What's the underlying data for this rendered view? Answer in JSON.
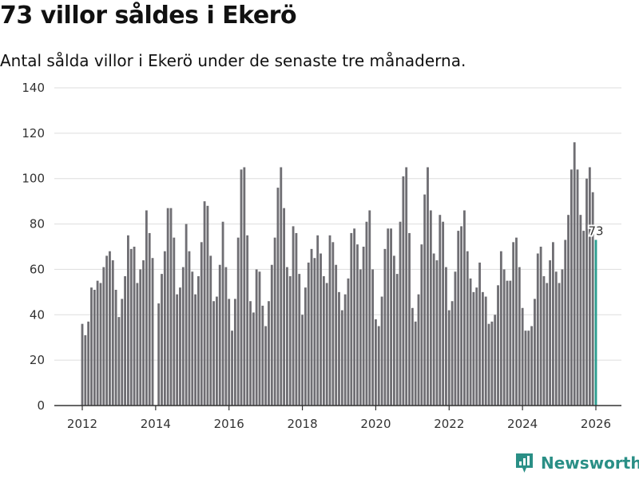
{
  "header": {
    "title": "73 villor såldes i Ekerö",
    "subtitle": "Antal sålda villor i Ekerö under de senaste tre månaderna."
  },
  "brand": {
    "name": "Newsworthy",
    "icon": "newsworthy-logo-icon"
  },
  "colors": {
    "bar": "#6f6e73",
    "highlight": "#2a9d8f",
    "grid": "#dddddd",
    "axis": "#333333",
    "brand": "#2a8f86"
  },
  "chart_data": {
    "type": "bar",
    "title": "73 villor såldes i Ekerö",
    "xlabel": "",
    "ylabel": "",
    "ylim": [
      0,
      140
    ],
    "yticks": [
      0,
      20,
      40,
      60,
      80,
      100,
      120,
      140
    ],
    "xticks": [
      2012,
      2014,
      2016,
      2018,
      2020,
      2022,
      2024,
      2026
    ],
    "x_start": 2012.0,
    "x_step_years": 0.0833,
    "series": [
      {
        "name": "Antal sålda villor (rullande tre månader)",
        "values": [
          36,
          31,
          37,
          52,
          51,
          55,
          54,
          61,
          66,
          68,
          64,
          51,
          39,
          47,
          57,
          75,
          69,
          70,
          54,
          60,
          64,
          86,
          76,
          65,
          0,
          45,
          58,
          68,
          87,
          87,
          74,
          49,
          52,
          61,
          80,
          68,
          59,
          49,
          57,
          72,
          90,
          88,
          66,
          46,
          48,
          62,
          81,
          61,
          47,
          33,
          47,
          74,
          104,
          105,
          75,
          46,
          41,
          60,
          59,
          44,
          35,
          46,
          62,
          74,
          96,
          105,
          87,
          61,
          57,
          79,
          76,
          58,
          40,
          52,
          63,
          69,
          65,
          75,
          67,
          57,
          54,
          75,
          72,
          62,
          50,
          42,
          49,
          56,
          76,
          78,
          71,
          60,
          70,
          81,
          86,
          60,
          38,
          35,
          48,
          69,
          78,
          78,
          66,
          58,
          81,
          101,
          105,
          76,
          43,
          37,
          49,
          71,
          93,
          105,
          86,
          67,
          64,
          84,
          81,
          61,
          42,
          46,
          59,
          77,
          79,
          86,
          68,
          56,
          50,
          52,
          63,
          50,
          48,
          36,
          37,
          40,
          53,
          68,
          60,
          55,
          55,
          72,
          74,
          61,
          43,
          33,
          33,
          35,
          47,
          67,
          70,
          57,
          54,
          64,
          72,
          59,
          54,
          60,
          73,
          84,
          104,
          116,
          104,
          84,
          77,
          100,
          105,
          94,
          73
        ]
      }
    ],
    "highlight": {
      "index": 168,
      "label": "73"
    }
  }
}
